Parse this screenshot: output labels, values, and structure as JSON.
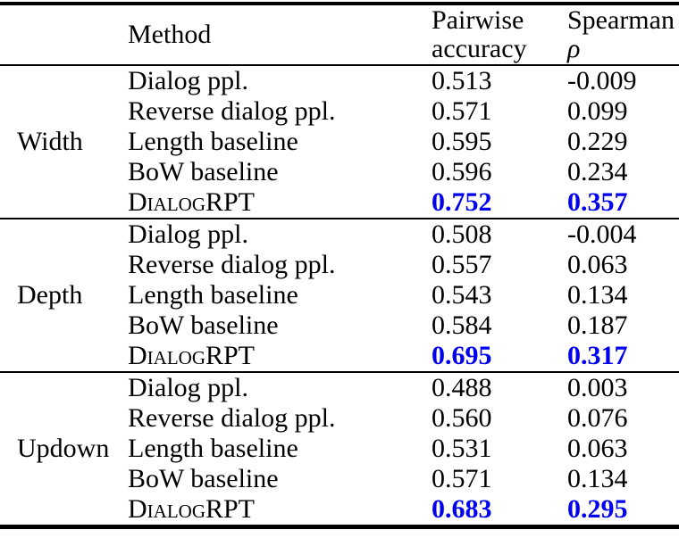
{
  "colors": {
    "highlight": "#0000ee",
    "text": "#000000",
    "background": "#ffffff"
  },
  "table": {
    "header": {
      "method": "Method",
      "pairwise_line1": "Pairwise",
      "pairwise_line2": "accuracy",
      "spearman_line1": "Spearman",
      "spearman_line2": "ρ"
    },
    "groups": [
      {
        "label": "Width",
        "rows": [
          {
            "method": "Dialog ppl.",
            "pairwise": "0.513",
            "spearman": "-0.009",
            "highlight": false,
            "smallcaps": false
          },
          {
            "method": "Reverse dialog ppl.",
            "pairwise": "0.571",
            "spearman": "0.099",
            "highlight": false,
            "smallcaps": false
          },
          {
            "method": "Length baseline",
            "pairwise": "0.595",
            "spearman": "0.229",
            "highlight": false,
            "smallcaps": false
          },
          {
            "method": "BoW baseline",
            "pairwise": "0.596",
            "spearman": "0.234",
            "highlight": false,
            "smallcaps": false
          },
          {
            "method": "DialogRPT",
            "pairwise": "0.752",
            "spearman": "0.357",
            "highlight": true,
            "smallcaps": true
          }
        ]
      },
      {
        "label": "Depth",
        "rows": [
          {
            "method": "Dialog ppl.",
            "pairwise": "0.508",
            "spearman": "-0.004",
            "highlight": false,
            "smallcaps": false
          },
          {
            "method": "Reverse dialog ppl.",
            "pairwise": "0.557",
            "spearman": "0.063",
            "highlight": false,
            "smallcaps": false
          },
          {
            "method": "Length baseline",
            "pairwise": "0.543",
            "spearman": "0.134",
            "highlight": false,
            "smallcaps": false
          },
          {
            "method": "BoW baseline",
            "pairwise": "0.584",
            "spearman": "0.187",
            "highlight": false,
            "smallcaps": false
          },
          {
            "method": "DialogRPT",
            "pairwise": "0.695",
            "spearman": "0.317",
            "highlight": true,
            "smallcaps": true
          }
        ]
      },
      {
        "label": "Updown",
        "rows": [
          {
            "method": "Dialog ppl.",
            "pairwise": "0.488",
            "spearman": "0.003",
            "highlight": false,
            "smallcaps": false
          },
          {
            "method": "Reverse dialog ppl.",
            "pairwise": "0.560",
            "spearman": "0.076",
            "highlight": false,
            "smallcaps": false
          },
          {
            "method": "Length baseline",
            "pairwise": "0.531",
            "spearman": "0.063",
            "highlight": false,
            "smallcaps": false
          },
          {
            "method": "BoW baseline",
            "pairwise": "0.571",
            "spearman": "0.134",
            "highlight": false,
            "smallcaps": false
          },
          {
            "method": "DialogRPT",
            "pairwise": "0.683",
            "spearman": "0.295",
            "highlight": true,
            "smallcaps": true
          }
        ]
      }
    ]
  }
}
